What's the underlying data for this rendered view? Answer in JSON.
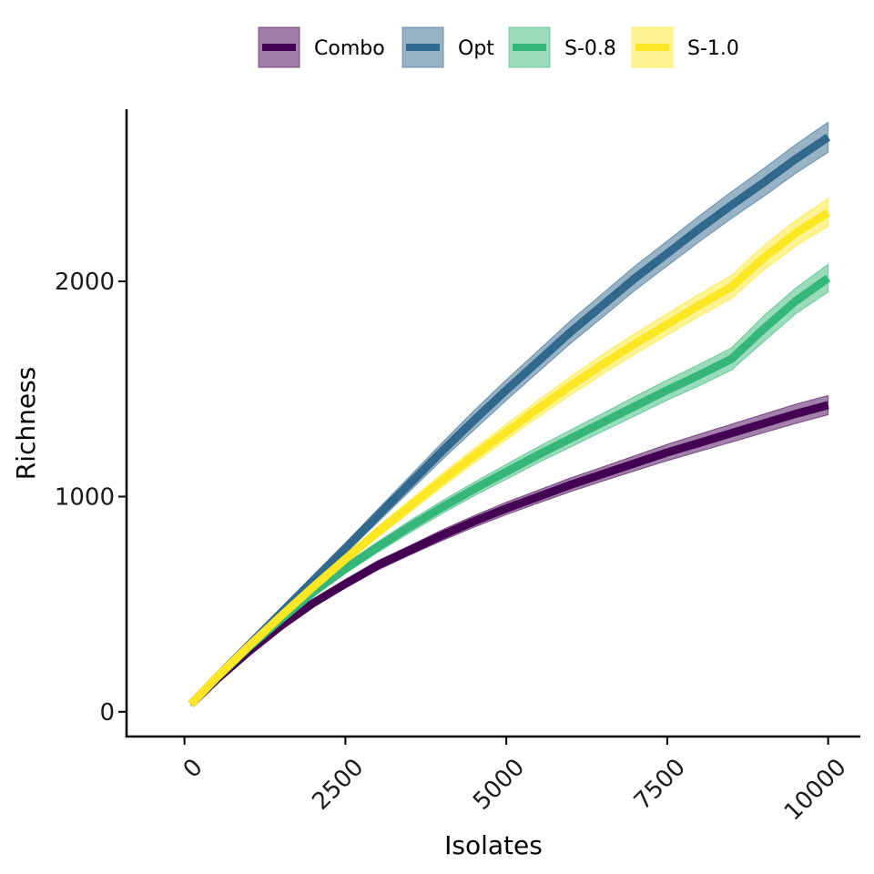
{
  "chart_data": {
    "type": "line",
    "title": "",
    "xlabel": "Isolates",
    "ylabel": "Richness",
    "xlim": [
      -900,
      10500
    ],
    "ylim": [
      -115,
      2800
    ],
    "x_ticks": [
      0,
      2500,
      5000,
      7500,
      10000
    ],
    "y_ticks": [
      0,
      1000,
      2000
    ],
    "grid": false,
    "legend_position": "top",
    "series": [
      {
        "name": "Combo",
        "color": "#440154",
        "x": [
          100,
          500,
          1000,
          1500,
          2000,
          2500,
          3000,
          3500,
          4000,
          4500,
          5000,
          5500,
          6000,
          6500,
          7000,
          7500,
          8000,
          8500,
          9000,
          9500,
          10000
        ],
        "values": [
          35,
          150,
          280,
          400,
          505,
          595,
          680,
          750,
          820,
          885,
          945,
          1000,
          1055,
          1105,
          1155,
          1205,
          1250,
          1295,
          1340,
          1385,
          1425
        ],
        "lower": [
          30,
          140,
          268,
          385,
          488,
          575,
          658,
          728,
          795,
          858,
          916,
          970,
          1023,
          1072,
          1120,
          1167,
          1210,
          1253,
          1297,
          1340,
          1380
        ],
        "upper": [
          40,
          160,
          292,
          415,
          522,
          615,
          702,
          772,
          845,
          912,
          974,
          1030,
          1087,
          1138,
          1190,
          1243,
          1290,
          1337,
          1383,
          1430,
          1470
        ]
      },
      {
        "name": "Opt",
        "color": "#31688E",
        "x": [
          100,
          500,
          1000,
          1500,
          2000,
          2500,
          3000,
          3500,
          4000,
          4500,
          5000,
          5500,
          6000,
          6500,
          7000,
          7500,
          8000,
          8500,
          9000,
          9500,
          10000
        ],
        "values": [
          35,
          160,
          310,
          460,
          610,
          760,
          910,
          1060,
          1210,
          1355,
          1495,
          1630,
          1765,
          1890,
          2015,
          2130,
          2245,
          2355,
          2460,
          2570,
          2670
        ],
        "lower": [
          30,
          150,
          296,
          442,
          588,
          735,
          880,
          1025,
          1170,
          1310,
          1447,
          1580,
          1712,
          1835,
          1958,
          2072,
          2185,
          2293,
          2395,
          2503,
          2600
        ],
        "upper": [
          40,
          170,
          324,
          478,
          632,
          785,
          940,
          1095,
          1250,
          1400,
          1543,
          1680,
          1818,
          1945,
          2072,
          2188,
          2305,
          2417,
          2525,
          2637,
          2740
        ]
      },
      {
        "name": "S-0.8",
        "color": "#35B779",
        "x": [
          100,
          500,
          1000,
          1500,
          2000,
          2500,
          3000,
          3500,
          4000,
          4500,
          5000,
          5500,
          6000,
          6500,
          7000,
          7500,
          8000,
          8500,
          9000,
          9500,
          10000
        ],
        "values": [
          35,
          158,
          300,
          430,
          555,
          665,
          765,
          860,
          950,
          1035,
          1115,
          1195,
          1270,
          1345,
          1420,
          1495,
          1565,
          1640,
          1780,
          1910,
          2015
        ],
        "lower": [
          30,
          148,
          285,
          413,
          536,
          642,
          740,
          832,
          920,
          1003,
          1080,
          1158,
          1230,
          1303,
          1375,
          1448,
          1515,
          1588,
          1720,
          1850,
          1950
        ],
        "upper": [
          40,
          168,
          315,
          447,
          574,
          688,
          790,
          888,
          980,
          1067,
          1150,
          1232,
          1310,
          1387,
          1465,
          1542,
          1615,
          1692,
          1840,
          1970,
          2080
        ]
      },
      {
        "name": "S-1.0",
        "color": "#FDE725",
        "x": [
          100,
          500,
          1000,
          1500,
          2000,
          2500,
          3000,
          3500,
          4000,
          4500,
          5000,
          5500,
          6000,
          6500,
          7000,
          7500,
          8000,
          8500,
          9000,
          9500,
          10000
        ],
        "values": [
          35,
          160,
          305,
          445,
          580,
          710,
          835,
          955,
          1075,
          1190,
          1300,
          1410,
          1515,
          1615,
          1710,
          1800,
          1890,
          1975,
          2110,
          2225,
          2320
        ],
        "lower": [
          30,
          150,
          290,
          428,
          560,
          687,
          810,
          926,
          1043,
          1155,
          1262,
          1370,
          1472,
          1569,
          1662,
          1750,
          1838,
          1921,
          2053,
          2165,
          2255
        ],
        "upper": [
          40,
          170,
          320,
          462,
          600,
          733,
          860,
          984,
          1107,
          1225,
          1338,
          1450,
          1558,
          1661,
          1758,
          1850,
          1942,
          2029,
          2167,
          2285,
          2385
        ]
      }
    ]
  }
}
